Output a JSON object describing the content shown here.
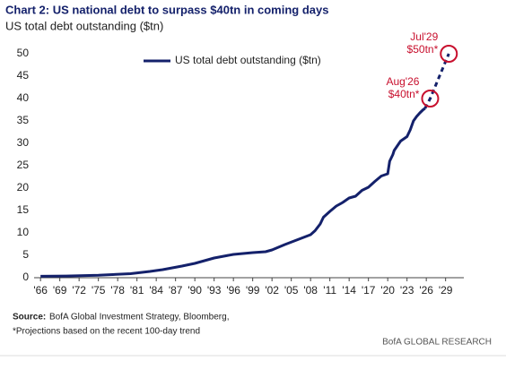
{
  "chart_data": {
    "type": "line",
    "title": "Chart 2: US national debt to surpass $40tn in coming days",
    "subtitle": "US total debt outstanding ($tn)",
    "series": [
      {
        "name": "US total debt outstanding ($tn)",
        "color": "#14216b",
        "dash": false,
        "x": [
          1966,
          1970,
          1975,
          1980,
          1983,
          1985,
          1988,
          1990,
          1993,
          1996,
          1999,
          2001,
          2002,
          2004,
          2006,
          2008,
          2008.7,
          2009.5,
          2010,
          2011,
          2012,
          2013,
          2014,
          2015,
          2016,
          2017,
          2018,
          2019,
          2020,
          2020.3,
          2020.8,
          2021,
          2022,
          2023,
          2023.5,
          2024,
          2024.5,
          2025,
          2025.5,
          2025.8
        ],
        "values": [
          0.32,
          0.38,
          0.54,
          0.9,
          1.4,
          1.8,
          2.6,
          3.2,
          4.4,
          5.2,
          5.6,
          5.8,
          6.2,
          7.4,
          8.5,
          9.6,
          10.5,
          12,
          13.5,
          14.8,
          16,
          16.8,
          17.8,
          18.2,
          19.5,
          20.2,
          21.5,
          22.7,
          23.2,
          26,
          27.5,
          28.4,
          30.5,
          31.5,
          33,
          35,
          36,
          36.8,
          37.5,
          37.8
        ]
      },
      {
        "color": "#14216b",
        "dash": true,
        "x": [
          2025.8,
          2026.6,
          2029.5
        ],
        "values": [
          37.8,
          40,
          50
        ]
      }
    ],
    "annotations": [
      {
        "label": "Aug'26",
        "value_label": "$40tn*",
        "x": 2026.6,
        "y": 40,
        "color": "#c8102e"
      },
      {
        "label": "Jul'29",
        "value_label": "$50tn*",
        "x": 2029.5,
        "y": 50,
        "color": "#c8102e"
      }
    ],
    "xlim": [
      1965,
      2031
    ],
    "xticks": [
      {
        "value": 1966,
        "label": "'66"
      },
      {
        "value": 1969,
        "label": "'69"
      },
      {
        "value": 1972,
        "label": "'72"
      },
      {
        "value": 1975,
        "label": "'75"
      },
      {
        "value": 1978,
        "label": "'78"
      },
      {
        "value": 1981,
        "label": "'81"
      },
      {
        "value": 1984,
        "label": "'84"
      },
      {
        "value": 1987,
        "label": "'87"
      },
      {
        "value": 1990,
        "label": "'90"
      },
      {
        "value": 1993,
        "label": "'93"
      },
      {
        "value": 1996,
        "label": "'96"
      },
      {
        "value": 1999,
        "label": "'99"
      },
      {
        "value": 2002,
        "label": "'02"
      },
      {
        "value": 2005,
        "label": "'05"
      },
      {
        "value": 2008,
        "label": "'08"
      },
      {
        "value": 2011,
        "label": "'11"
      },
      {
        "value": 2014,
        "label": "'14"
      },
      {
        "value": 2017,
        "label": "'17"
      },
      {
        "value": 2020,
        "label": "'20"
      },
      {
        "value": 2023,
        "label": "'23"
      },
      {
        "value": 2026,
        "label": "'26"
      },
      {
        "value": 2029,
        "label": "'29"
      }
    ],
    "ylim": [
      0,
      50
    ],
    "yticks": [
      0,
      5,
      10,
      15,
      20,
      25,
      30,
      35,
      40,
      45,
      50
    ],
    "grid": false,
    "legend": "top"
  },
  "footer": {
    "source_label": "Source:",
    "source_text": "BofA Global Investment Strategy, Bloomberg,",
    "note": "*Projections based on the recent 100-day trend",
    "brand": "BofA GLOBAL RESEARCH"
  }
}
